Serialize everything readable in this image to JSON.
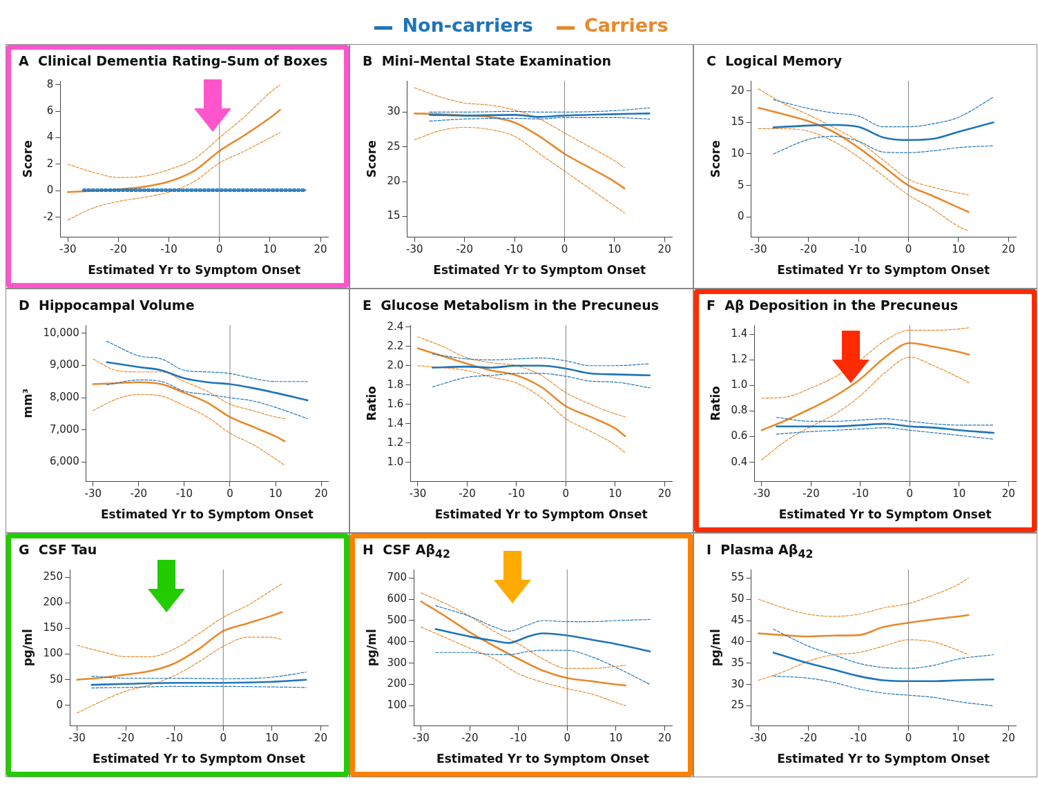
{
  "chart_data": [
    {
      "type": "line",
      "title": "A  Clinical Dementia Rating–Sum of Boxes",
      "xlabel": "Estimated Yr to Symptom Onset",
      "ylabel": "Score",
      "xlim": [
        -31.5,
        21.5
      ],
      "xticks": [
        -30,
        -20,
        -10,
        0,
        10,
        20
      ],
      "ylim": [
        -3.5,
        8.3
      ],
      "yticks": [
        -2,
        0,
        2,
        4,
        6,
        8
      ],
      "legend": "top",
      "ref_lines": [
        {
          "axis": "x",
          "value": 0,
          "color": "#808080"
        }
      ],
      "series": [
        {
          "name": "Non-carriers",
          "color": "#1f74b9",
          "x": [
            -27,
            -20,
            -10,
            0,
            10,
            17
          ],
          "values": [
            0.05,
            0.05,
            0.05,
            0.05,
            0.05,
            0.05
          ]
        },
        {
          "color": "#1f74b9",
          "line_style": "dashed",
          "x": [
            -27,
            -20,
            -10,
            0,
            10,
            17
          ],
          "values": [
            -0.05,
            -0.05,
            -0.05,
            -0.05,
            -0.05,
            -0.05
          ]
        },
        {
          "color": "#1f74b9",
          "line_style": "dashed",
          "x": [
            -27,
            -20,
            -10,
            0,
            10,
            17
          ],
          "values": [
            0.15,
            0.15,
            0.15,
            0.15,
            0.15,
            0.15
          ]
        },
        {
          "name": "Carriers",
          "color": "#e8892b",
          "x": [
            -30,
            -25,
            -20,
            -15,
            -10,
            -5,
            0,
            5,
            10,
            12
          ],
          "values": [
            -0.1,
            0,
            0.1,
            0.3,
            0.7,
            1.5,
            3.0,
            4.2,
            5.5,
            6.1
          ]
        },
        {
          "color": "#e8892b",
          "line_style": "dashed",
          "x": [
            -30,
            -25,
            -20,
            -15,
            -10,
            -5,
            0,
            5,
            10,
            12
          ],
          "values": [
            -2.2,
            -1.3,
            -0.8,
            -0.5,
            -0.1,
            0.7,
            2.1,
            3.0,
            4.0,
            4.4
          ]
        },
        {
          "color": "#e8892b",
          "line_style": "dashed",
          "x": [
            -30,
            -25,
            -20,
            -15,
            -10,
            -5,
            0,
            5,
            10,
            12
          ],
          "values": [
            2.0,
            1.4,
            1.0,
            1.1,
            1.6,
            2.4,
            4.0,
            5.6,
            7.4,
            8.0
          ]
        }
      ]
    },
    {
      "type": "line",
      "title": "B  Mini–Mental State Examination",
      "xlabel": "Estimated Yr to Symptom Onset",
      "ylabel": "Score",
      "xlim": [
        -31.5,
        21.5
      ],
      "xticks": [
        -30,
        -20,
        -10,
        0,
        10,
        20
      ],
      "ylim": [
        12,
        34.5
      ],
      "yticks": [
        15,
        20,
        25,
        30
      ],
      "ref_lines": [
        {
          "axis": "x",
          "value": 0,
          "color": "#808080"
        }
      ],
      "series": [
        {
          "color": "#1f74b9",
          "x": [
            -27,
            -20,
            -10,
            -5,
            0,
            10,
            17
          ],
          "values": [
            29.6,
            29.5,
            29.6,
            29.3,
            29.5,
            29.7,
            29.8
          ]
        },
        {
          "color": "#1f74b9",
          "line_style": "dashed",
          "x": [
            -27,
            -20,
            -10,
            -5,
            0,
            10,
            17
          ],
          "values": [
            28.7,
            29.0,
            29.1,
            29.0,
            29.2,
            29.2,
            29.0
          ]
        },
        {
          "color": "#1f74b9",
          "line_style": "dashed",
          "x": [
            -27,
            -20,
            -10,
            -5,
            0,
            10,
            17
          ],
          "values": [
            30.0,
            30.0,
            30.1,
            30.0,
            30.0,
            30.2,
            30.6
          ]
        },
        {
          "color": "#e8892b",
          "x": [
            -30,
            -25,
            -20,
            -15,
            -10,
            -5,
            0,
            5,
            10,
            12
          ],
          "values": [
            29.8,
            29.7,
            29.5,
            29.3,
            28.5,
            26.5,
            24,
            22,
            20,
            19
          ]
        },
        {
          "color": "#e8892b",
          "line_style": "dashed",
          "x": [
            -30,
            -25,
            -20,
            -15,
            -10,
            -5,
            0,
            5,
            10,
            12
          ],
          "values": [
            26,
            27.3,
            27.8,
            27.5,
            26.5,
            24,
            21.5,
            19,
            16.5,
            15.5
          ]
        },
        {
          "color": "#e8892b",
          "line_style": "dashed",
          "x": [
            -30,
            -25,
            -20,
            -15,
            -10,
            -5,
            0,
            5,
            10,
            12
          ],
          "values": [
            33.5,
            32.2,
            31.3,
            31,
            30.3,
            29,
            27,
            25,
            23,
            22
          ]
        }
      ]
    },
    {
      "type": "line",
      "title": "C  Logical Memory",
      "xlabel": "Estimated Yr to Symptom Onset",
      "ylabel": "Score",
      "xlim": [
        -31.5,
        21.5
      ],
      "xticks": [
        -30,
        -20,
        -10,
        0,
        10,
        20
      ],
      "ylim": [
        -3.2,
        21.6
      ],
      "yticks": [
        0,
        5,
        10,
        15,
        20
      ],
      "ref_lines": [
        {
          "axis": "x",
          "value": 0,
          "color": "#808080"
        }
      ],
      "series": [
        {
          "color": "#1f74b9",
          "x": [
            -27,
            -20,
            -15,
            -10,
            -5,
            0,
            5,
            10,
            17
          ],
          "values": [
            14.2,
            14.5,
            14.6,
            14.3,
            12.6,
            12.2,
            12.4,
            13.5,
            15
          ]
        },
        {
          "color": "#1f74b9",
          "line_style": "dashed",
          "x": [
            -27,
            -20,
            -15,
            -10,
            -5,
            0,
            5,
            10,
            17
          ],
          "values": [
            10,
            12.3,
            12.8,
            12,
            10.3,
            10.2,
            10.5,
            11,
            11.3
          ]
        },
        {
          "color": "#1f74b9",
          "line_style": "dashed",
          "x": [
            -27,
            -20,
            -15,
            -10,
            -5,
            0,
            5,
            10,
            17
          ],
          "values": [
            18.6,
            17.2,
            16.5,
            16,
            14.3,
            14.3,
            14.8,
            15.8,
            19
          ]
        },
        {
          "color": "#e8892b",
          "x": [
            -30,
            -25,
            -20,
            -15,
            -10,
            -5,
            0,
            5,
            10,
            12
          ],
          "values": [
            17.3,
            16.3,
            15.2,
            13.5,
            11,
            8,
            5,
            3.3,
            1.5,
            0.8
          ]
        },
        {
          "color": "#e8892b",
          "line_style": "dashed",
          "x": [
            -30,
            -25,
            -20,
            -15,
            -10,
            -5,
            0,
            5,
            10,
            12
          ],
          "values": [
            14,
            14,
            13.6,
            12,
            9.5,
            6.5,
            3.5,
            1.2,
            -1.5,
            -2.2
          ]
        },
        {
          "color": "#e8892b",
          "line_style": "dashed",
          "x": [
            -30,
            -25,
            -20,
            -15,
            -10,
            -5,
            0,
            5,
            10,
            12
          ],
          "values": [
            20.3,
            18,
            16.2,
            14.2,
            12,
            9,
            6,
            4.7,
            3.8,
            3.5
          ]
        }
      ]
    },
    {
      "type": "line",
      "title": "D  Hippocampal Volume",
      "xlabel": "Estimated Yr to Symptom Onset",
      "ylabel": "mm³",
      "xlim": [
        -31.5,
        21.5
      ],
      "xticks": [
        -30,
        -20,
        -10,
        0,
        10,
        20
      ],
      "ylim": [
        5400,
        10250
      ],
      "yticks": [
        {
          "value": 6000,
          "label": "6,000"
        },
        {
          "value": 7000,
          "label": "7,000"
        },
        {
          "value": 8000,
          "label": "8,000"
        },
        {
          "value": 9000,
          "label": "9,000"
        },
        {
          "value": 10000,
          "label": "10,000"
        }
      ],
      "ref_lines": [
        {
          "axis": "x",
          "value": 0,
          "color": "#808080"
        }
      ],
      "series": [
        {
          "color": "#1f74b9",
          "x": [
            -27,
            -20,
            -15,
            -10,
            -5,
            0,
            5,
            10,
            17
          ],
          "values": [
            9100,
            8950,
            8850,
            8600,
            8480,
            8420,
            8300,
            8150,
            7920
          ]
        },
        {
          "color": "#1f74b9",
          "line_style": "dashed",
          "x": [
            -27,
            -20,
            -15,
            -10,
            -5,
            0,
            5,
            10,
            17
          ],
          "values": [
            8400,
            8550,
            8500,
            8200,
            8100,
            8000,
            7900,
            7700,
            7350
          ]
        },
        {
          "color": "#1f74b9",
          "line_style": "dashed",
          "x": [
            -27,
            -20,
            -15,
            -10,
            -5,
            0,
            5,
            10,
            17
          ],
          "values": [
            9750,
            9300,
            9200,
            8850,
            8800,
            8750,
            8600,
            8500,
            8500
          ]
        },
        {
          "color": "#e8892b",
          "x": [
            -30,
            -25,
            -20,
            -15,
            -10,
            -5,
            0,
            5,
            10,
            12
          ],
          "values": [
            8420,
            8450,
            8480,
            8420,
            8150,
            7850,
            7400,
            7100,
            6800,
            6650
          ]
        },
        {
          "color": "#e8892b",
          "line_style": "dashed",
          "x": [
            -30,
            -25,
            -20,
            -15,
            -10,
            -5,
            0,
            5,
            10,
            12
          ],
          "values": [
            7600,
            7950,
            8100,
            8050,
            7750,
            7400,
            6900,
            6550,
            6100,
            5900
          ]
        },
        {
          "color": "#e8892b",
          "line_style": "dashed",
          "x": [
            -30,
            -25,
            -20,
            -15,
            -10,
            -5,
            0,
            5,
            10,
            12
          ],
          "values": [
            9200,
            8850,
            8800,
            8800,
            8500,
            8200,
            7800,
            7600,
            7400,
            7350
          ]
        }
      ]
    },
    {
      "type": "line",
      "title": "E  Glucose Metabolism in the Precuneus",
      "xlabel": "Estimated Yr to Symptom Onset",
      "ylabel": "Ratio",
      "xlim": [
        -31.5,
        21.5
      ],
      "xticks": [
        -30,
        -20,
        -10,
        0,
        10,
        20
      ],
      "ylim": [
        0.8,
        2.42
      ],
      "yticks": [
        {
          "value": 1.0,
          "label": "1.0"
        },
        1.2,
        1.4,
        1.6,
        1.8,
        {
          "value": 2.0,
          "label": "2.0"
        },
        2.2,
        2.4
      ],
      "ref_lines": [
        {
          "axis": "x",
          "value": 0,
          "color": "#808080"
        }
      ],
      "series": [
        {
          "color": "#1f74b9",
          "x": [
            -27,
            -20,
            -15,
            -10,
            -5,
            0,
            5,
            10,
            17
          ],
          "values": [
            1.98,
            1.99,
            1.98,
            2.0,
            2.0,
            1.97,
            1.92,
            1.91,
            1.9
          ]
        },
        {
          "color": "#1f74b9",
          "line_style": "dashed",
          "x": [
            -27,
            -20,
            -15,
            -10,
            -5,
            0,
            5,
            10,
            17
          ],
          "values": [
            1.78,
            1.88,
            1.9,
            1.92,
            1.92,
            1.89,
            1.84,
            1.83,
            1.77
          ]
        },
        {
          "color": "#1f74b9",
          "line_style": "dashed",
          "x": [
            -27,
            -20,
            -15,
            -10,
            -5,
            0,
            5,
            10,
            17
          ],
          "values": [
            2.12,
            2.07,
            2.06,
            2.07,
            2.08,
            2.05,
            2.0,
            2.0,
            2.02
          ]
        },
        {
          "color": "#e8892b",
          "x": [
            -30,
            -25,
            -20,
            -15,
            -10,
            -5,
            0,
            5,
            10,
            12
          ],
          "values": [
            2.18,
            2.1,
            2.02,
            1.95,
            1.9,
            1.78,
            1.58,
            1.47,
            1.35,
            1.27
          ]
        },
        {
          "color": "#e8892b",
          "line_style": "dashed",
          "x": [
            -30,
            -25,
            -20,
            -15,
            -10,
            -5,
            0,
            5,
            10,
            12
          ],
          "values": [
            2.0,
            1.98,
            1.95,
            1.88,
            1.82,
            1.67,
            1.45,
            1.32,
            1.18,
            1.1
          ]
        },
        {
          "color": "#e8892b",
          "line_style": "dashed",
          "x": [
            -30,
            -25,
            -20,
            -15,
            -10,
            -5,
            0,
            5,
            10,
            12
          ],
          "values": [
            2.3,
            2.2,
            2.08,
            2.03,
            2.0,
            1.9,
            1.72,
            1.6,
            1.5,
            1.47
          ]
        }
      ]
    },
    {
      "type": "line",
      "title": "F  Aβ Deposition in the Precuneus",
      "xlabel": "Estimated Yr to Symptom Onset",
      "ylabel": "Ratio",
      "xlim": [
        -31.5,
        21.5
      ],
      "xticks": [
        -30,
        -20,
        -10,
        0,
        10,
        20
      ],
      "ylim": [
        0.25,
        1.47
      ],
      "yticks": [
        0.4,
        0.6,
        0.8,
        {
          "value": 1.0,
          "label": "1.0"
        },
        1.2,
        1.4
      ],
      "ref_lines": [
        {
          "axis": "x",
          "value": 0,
          "color": "#808080"
        }
      ],
      "series": [
        {
          "color": "#1f74b9",
          "x": [
            -27,
            -20,
            -15,
            -10,
            -5,
            0,
            5,
            10,
            17
          ],
          "values": [
            0.68,
            0.68,
            0.68,
            0.69,
            0.7,
            0.68,
            0.67,
            0.65,
            0.63
          ]
        },
        {
          "color": "#1f74b9",
          "line_style": "dashed",
          "x": [
            -27,
            -20,
            -15,
            -10,
            -5,
            0,
            5,
            10,
            17
          ],
          "values": [
            0.62,
            0.64,
            0.65,
            0.66,
            0.67,
            0.65,
            0.63,
            0.61,
            0.58
          ]
        },
        {
          "color": "#1f74b9",
          "line_style": "dashed",
          "x": [
            -27,
            -20,
            -15,
            -10,
            -5,
            0,
            5,
            10,
            17
          ],
          "values": [
            0.75,
            0.72,
            0.72,
            0.73,
            0.74,
            0.72,
            0.7,
            0.69,
            0.69
          ]
        },
        {
          "color": "#e8892b",
          "x": [
            -30,
            -25,
            -20,
            -15,
            -10,
            -5,
            0,
            5,
            10,
            12
          ],
          "values": [
            0.65,
            0.73,
            0.82,
            0.92,
            1.05,
            1.22,
            1.33,
            1.3,
            1.26,
            1.24
          ]
        },
        {
          "color": "#e8892b",
          "line_style": "dashed",
          "x": [
            -30,
            -25,
            -20,
            -15,
            -10,
            -5,
            0,
            5,
            10,
            12
          ],
          "values": [
            0.42,
            0.57,
            0.68,
            0.78,
            0.92,
            1.1,
            1.22,
            1.15,
            1.06,
            1.02
          ]
        },
        {
          "color": "#e8892b",
          "line_style": "dashed",
          "x": [
            -30,
            -25,
            -20,
            -15,
            -10,
            -5,
            0,
            5,
            10,
            12
          ],
          "values": [
            0.9,
            0.91,
            0.98,
            1.07,
            1.2,
            1.35,
            1.43,
            1.43,
            1.44,
            1.45
          ]
        }
      ]
    },
    {
      "type": "line",
      "title": "G  CSF Tau",
      "xlabel": "Estimated Yr to Symptom Onset",
      "ylabel": "pg/ml",
      "xlim": [
        -31.5,
        21.5
      ],
      "xticks": [
        -30,
        -20,
        -10,
        0,
        10,
        20
      ],
      "ylim": [
        -40,
        265
      ],
      "yticks": [
        0,
        50,
        100,
        150,
        200,
        250
      ],
      "ref_lines": [
        {
          "axis": "x",
          "value": 0,
          "color": "#808080"
        }
      ],
      "series": [
        {
          "color": "#1f74b9",
          "x": [
            -27,
            -20,
            -10,
            0,
            10,
            17
          ],
          "values": [
            40,
            42,
            44,
            44,
            46,
            50
          ]
        },
        {
          "color": "#1f74b9",
          "line_style": "dashed",
          "x": [
            -27,
            -20,
            -10,
            0,
            10,
            17
          ],
          "values": [
            34,
            35,
            37,
            37,
            36,
            35
          ]
        },
        {
          "color": "#1f74b9",
          "line_style": "dashed",
          "x": [
            -27,
            -20,
            -10,
            0,
            10,
            17
          ],
          "values": [
            57,
            53,
            53,
            52,
            55,
            65
          ]
        },
        {
          "color": "#e8892b",
          "x": [
            -30,
            -25,
            -20,
            -15,
            -10,
            -5,
            0,
            5,
            10,
            12
          ],
          "values": [
            50,
            54,
            60,
            67,
            82,
            110,
            145,
            160,
            175,
            182
          ]
        },
        {
          "color": "#e8892b",
          "line_style": "dashed",
          "x": [
            -30,
            -25,
            -20,
            -15,
            -10,
            -5,
            0,
            5,
            10,
            12
          ],
          "values": [
            -15,
            8,
            28,
            40,
            58,
            85,
            115,
            133,
            133,
            128
          ]
        },
        {
          "color": "#e8892b",
          "line_style": "dashed",
          "x": [
            -30,
            -25,
            -20,
            -15,
            -10,
            -5,
            0,
            5,
            10,
            12
          ],
          "values": [
            117,
            105,
            95,
            95,
            110,
            140,
            172,
            195,
            225,
            237
          ]
        }
      ]
    },
    {
      "type": "line",
      "title": "H  CSF Aβ$_{42}$",
      "xlabel": "Estimated Yr to Symptom Onset",
      "ylabel": "pg/ml",
      "xlim": [
        -31.5,
        21.5
      ],
      "xticks": [
        -30,
        -20,
        -10,
        0,
        10,
        20
      ],
      "ylim": [
        5,
        740
      ],
      "yticks": [
        100,
        200,
        300,
        400,
        500,
        600,
        700
      ],
      "ref_lines": [
        {
          "axis": "x",
          "value": 0,
          "color": "#808080"
        }
      ],
      "series": [
        {
          "color": "#1f74b9",
          "x": [
            -27,
            -20,
            -15,
            -12,
            -8,
            -5,
            0,
            5,
            10,
            17
          ],
          "values": [
            460,
            425,
            405,
            395,
            425,
            440,
            430,
            410,
            390,
            355
          ]
        },
        {
          "color": "#1f74b9",
          "line_style": "dashed",
          "x": [
            -27,
            -20,
            -15,
            -12,
            -8,
            -5,
            0,
            5,
            10,
            17
          ],
          "values": [
            350,
            350,
            340,
            340,
            355,
            360,
            360,
            330,
            280,
            200
          ]
        },
        {
          "color": "#1f74b9",
          "line_style": "dashed",
          "x": [
            -27,
            -20,
            -15,
            -12,
            -8,
            -5,
            0,
            5,
            10,
            17
          ],
          "values": [
            570,
            520,
            470,
            450,
            480,
            500,
            495,
            495,
            500,
            505
          ]
        },
        {
          "color": "#e8892b",
          "x": [
            -30,
            -25,
            -20,
            -15,
            -10,
            -5,
            0,
            5,
            10,
            12
          ],
          "values": [
            590,
            520,
            445,
            380,
            320,
            265,
            230,
            215,
            200,
            195
          ]
        },
        {
          "color": "#e8892b",
          "line_style": "dashed",
          "x": [
            -30,
            -25,
            -20,
            -15,
            -10,
            -5,
            0,
            5,
            10,
            12
          ],
          "values": [
            470,
            420,
            370,
            320,
            250,
            210,
            180,
            155,
            115,
            100
          ]
        },
        {
          "color": "#e8892b",
          "line_style": "dashed",
          "x": [
            -30,
            -25,
            -20,
            -15,
            -10,
            -5,
            0,
            5,
            10,
            12
          ],
          "values": [
            630,
            580,
            520,
            450,
            390,
            320,
            275,
            275,
            285,
            290
          ]
        }
      ]
    },
    {
      "type": "line",
      "title": "I  Plasma Aβ$_{42}$",
      "xlabel": "Estimated Yr to Symptom Onset",
      "ylabel": "pg/ml",
      "xlim": [
        -31.5,
        21.5
      ],
      "xticks": [
        -30,
        -20,
        -10,
        0,
        10,
        20
      ],
      "ylim": [
        20.3,
        57
      ],
      "yticks": [
        25,
        30,
        35,
        40,
        45,
        50,
        55
      ],
      "ref_lines": [
        {
          "axis": "x",
          "value": 0,
          "color": "#808080"
        }
      ],
      "series": [
        {
          "color": "#1f74b9",
          "x": [
            -27,
            -20,
            -15,
            -10,
            -5,
            0,
            5,
            10,
            17
          ],
          "values": [
            37.5,
            35,
            33.5,
            32,
            31,
            30.8,
            30.8,
            31,
            31.2
          ]
        },
        {
          "color": "#1f74b9",
          "line_style": "dashed",
          "x": [
            -27,
            -20,
            -15,
            -10,
            -5,
            0,
            5,
            10,
            17
          ],
          "values": [
            32,
            31.5,
            30.5,
            29,
            28,
            27.5,
            27,
            26,
            25
          ]
        },
        {
          "color": "#1f74b9",
          "line_style": "dashed",
          "x": [
            -27,
            -20,
            -15,
            -10,
            -5,
            0,
            5,
            10,
            17
          ],
          "values": [
            43,
            39,
            37,
            35,
            34,
            33.8,
            34.5,
            36,
            37
          ]
        },
        {
          "color": "#e8892b",
          "x": [
            -30,
            -25,
            -20,
            -15,
            -10,
            -5,
            0,
            5,
            10,
            12
          ],
          "values": [
            42,
            41.6,
            41.3,
            41.5,
            41.6,
            43.5,
            44.5,
            45.3,
            46,
            46.3
          ]
        },
        {
          "color": "#e8892b",
          "line_style": "dashed",
          "x": [
            -30,
            -25,
            -20,
            -15,
            -10,
            -5,
            0,
            5,
            10,
            12
          ],
          "values": [
            31,
            33,
            35.5,
            37,
            37.5,
            39,
            40.5,
            40,
            38,
            37
          ]
        },
        {
          "color": "#e8892b",
          "line_style": "dashed",
          "x": [
            -30,
            -25,
            -20,
            -15,
            -10,
            -5,
            0,
            5,
            10,
            12
          ],
          "values": [
            50,
            48,
            46.5,
            46,
            46.5,
            48,
            49,
            51,
            53.5,
            55
          ]
        }
      ]
    }
  ]
}
